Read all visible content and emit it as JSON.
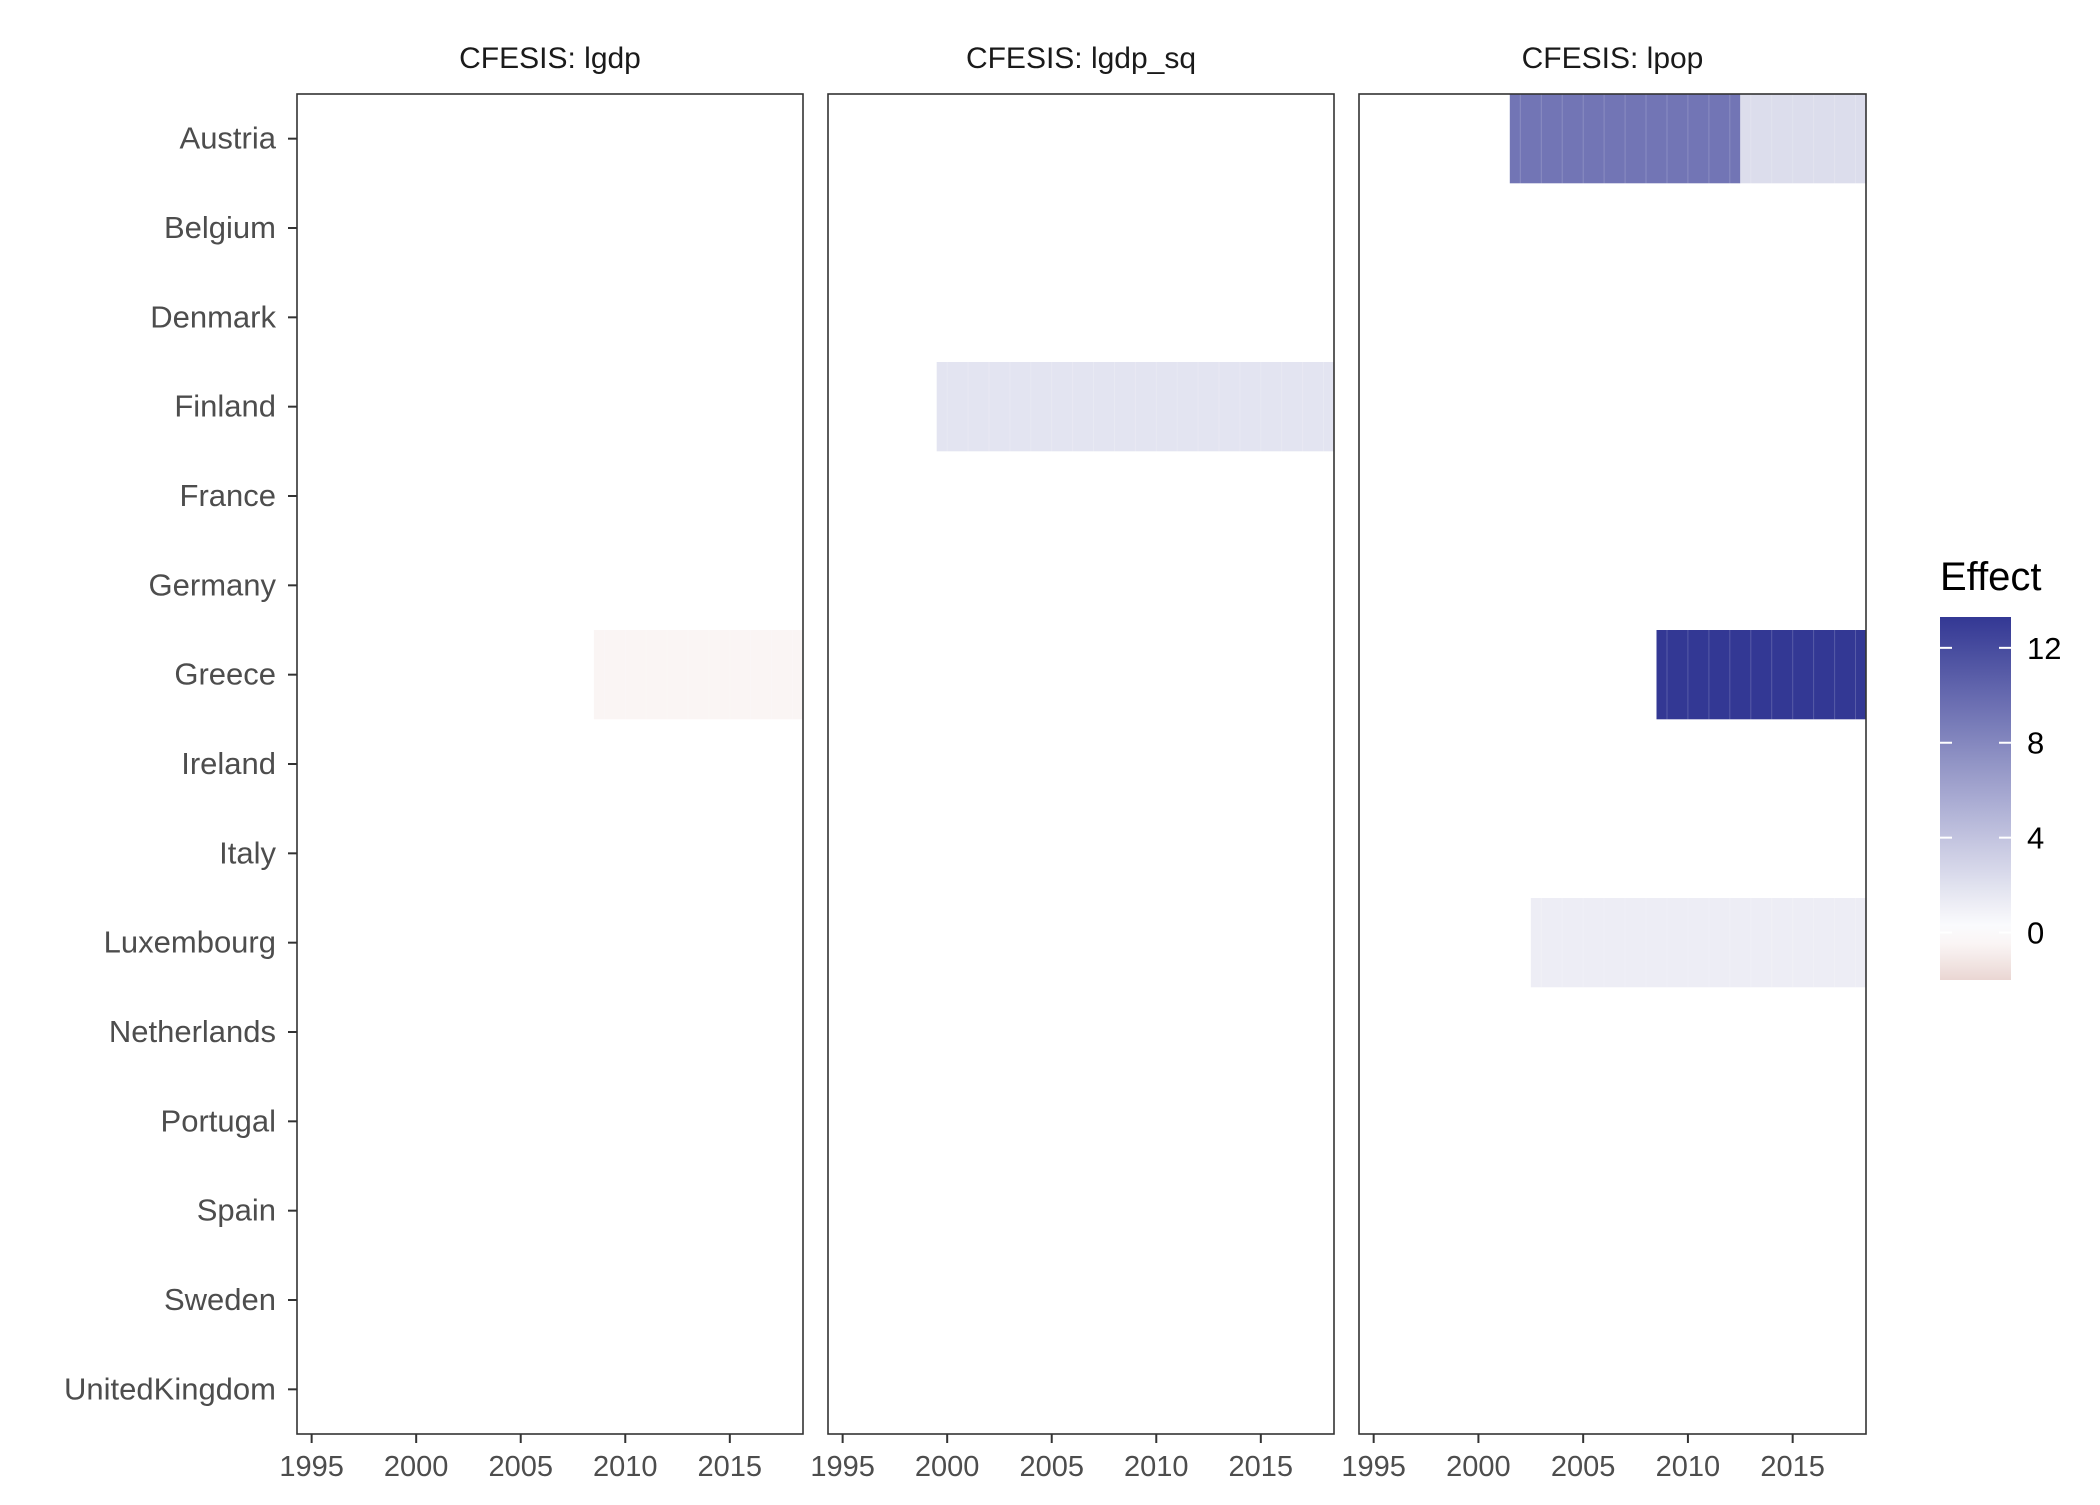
{
  "chart_data": {
    "type": "heatmap",
    "facets": [
      {
        "title": "CFESIS: lgdp",
        "cells": [
          {
            "country": "Greece",
            "from": 2008.5,
            "to": 2018.5,
            "value": -0.5
          }
        ]
      },
      {
        "title": "CFESIS: lgdp_sq",
        "cells": [
          {
            "country": "Finland",
            "from": 1999.5,
            "to": 2018.5,
            "value": 1.8
          }
        ]
      },
      {
        "title": "CFESIS: lpop",
        "cells": [
          {
            "country": "Austria",
            "from": 2001.5,
            "to": 2012.5,
            "value": 9.2
          },
          {
            "country": "Austria",
            "from": 2012.5,
            "to": 2018.5,
            "value": 2.3
          },
          {
            "country": "Greece",
            "from": 2008.5,
            "to": 2018.5,
            "value": 13.3
          },
          {
            "country": "Luxembourg",
            "from": 2002.5,
            "to": 2018.5,
            "value": 1.2
          }
        ]
      }
    ],
    "countries": [
      "Austria",
      "Belgium",
      "Denmark",
      "Finland",
      "France",
      "Germany",
      "Greece",
      "Ireland",
      "Italy",
      "Luxembourg",
      "Netherlands",
      "Portugal",
      "Spain",
      "Sweden",
      "UnitedKingdom"
    ],
    "x_ticks": [
      1995,
      2000,
      2005,
      2010,
      2015
    ],
    "xlim": [
      1994.3,
      2018.5
    ],
    "legend": {
      "title": "Effect",
      "ticks": [
        0,
        4,
        8,
        12
      ],
      "range": [
        -2,
        13.3
      ],
      "position": "right",
      "colors": {
        "low": "#ead6d3",
        "mid": "#ffffff",
        "high": "#333894"
      }
    },
    "grid": false
  }
}
